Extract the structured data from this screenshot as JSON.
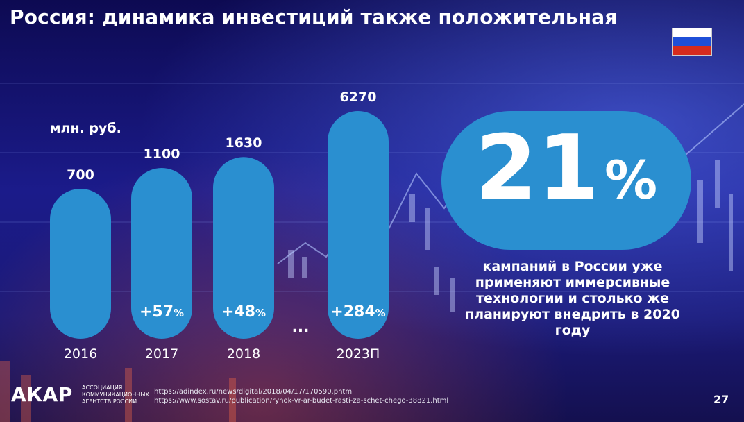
{
  "slide": {
    "title": "Россия: динамика инвестиций также положительная",
    "page_number": "27"
  },
  "flag": {
    "name": "russia-flag",
    "colors": [
      "#ffffff",
      "#1f4fd8",
      "#d52b1e"
    ]
  },
  "chart_data": {
    "type": "bar",
    "unit_label": "млн. руб.",
    "categories": [
      "2016",
      "2017",
      "2018",
      "2023П"
    ],
    "values": [
      700,
      1100,
      1630,
      6270
    ],
    "value_labels": [
      "700",
      "1100",
      "1630",
      "6270"
    ],
    "growth_labels": [
      {
        "num": "",
        "pct": ""
      },
      {
        "num": "+57",
        "pct": "%"
      },
      {
        "num": "+48",
        "pct": "%"
      },
      {
        "num": "+284",
        "pct": "%"
      }
    ],
    "gap_marker": "...",
    "bar_color": "#2a8fd0"
  },
  "highlight": {
    "number": "21",
    "percent_sign": "%",
    "caption": "кампаний в России уже применяют иммерсивные технологии и столько же планируют внедрить в 2020 году",
    "color": "#2a8fd0"
  },
  "footer": {
    "logo": "АКАР",
    "org_lines": [
      "АССОЦИАЦИЯ",
      "КОММУНИКАЦИОННЫХ",
      "АГЕНТСТВ РОССИИ"
    ],
    "sources": [
      "https://adindex.ru/news/digital/2018/04/17/170590.phtml",
      "https://www.sostav.ru/publication/rynok-vr-ar-budet-rasti-za-schet-chego-38821.html"
    ]
  }
}
